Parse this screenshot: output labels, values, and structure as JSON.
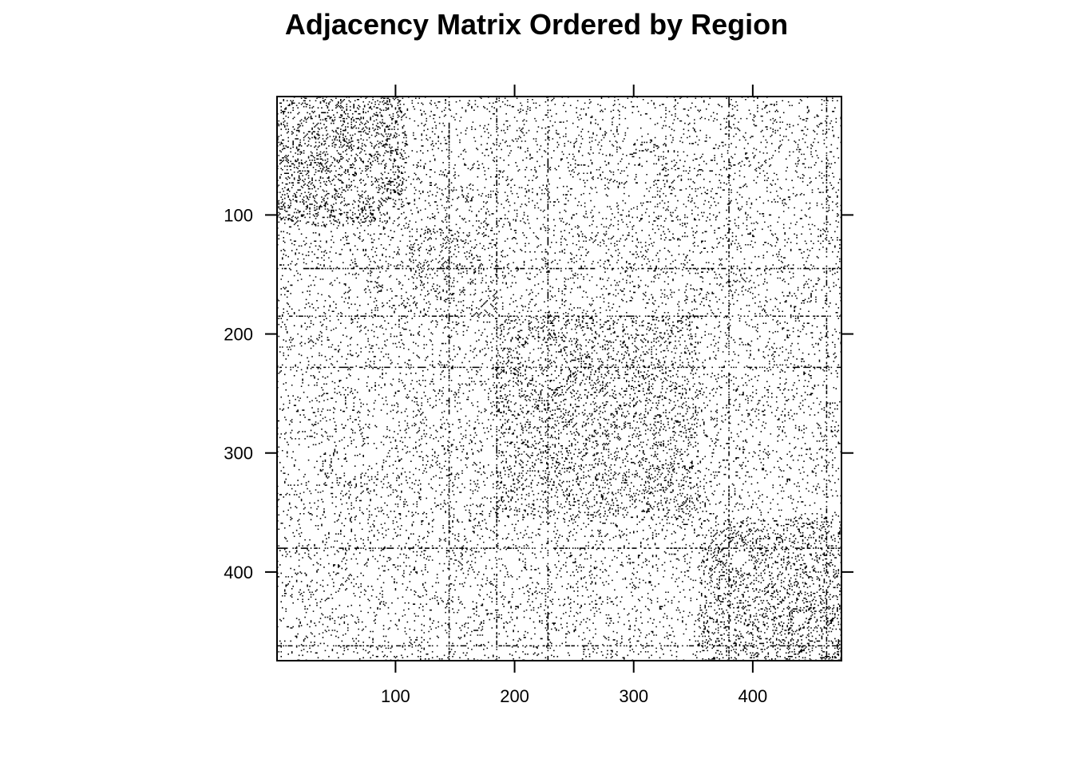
{
  "chart_data": {
    "type": "heatmap",
    "title": "Adjacency Matrix Ordered by Region",
    "xlabel": "",
    "ylabel": "",
    "n": 474,
    "xlim": [
      0.5,
      474.5
    ],
    "ylim": [
      474.5,
      0.5
    ],
    "x_ticks": [
      100,
      200,
      300,
      400
    ],
    "x_tick_labels": [
      "100",
      "200",
      "300",
      "400"
    ],
    "y_ticks": [
      100,
      200,
      300,
      400
    ],
    "y_tick_labels": [
      "100",
      "200",
      "300",
      "400"
    ],
    "grid": false,
    "legend": "none",
    "cell_color": "#000000",
    "background_color": "#ffffff",
    "blocks": [
      {
        "from": 1,
        "to": 110,
        "density": 0.14
      },
      {
        "from": 110,
        "to": 185,
        "density": 0.09
      },
      {
        "from": 185,
        "to": 355,
        "density": 0.11
      },
      {
        "from": 355,
        "to": 474,
        "density": 0.13
      }
    ],
    "background_density": 0.05,
    "dense_rows": [
      145,
      380,
      462
    ],
    "dense_cols": [
      185,
      228,
      380
    ]
  }
}
